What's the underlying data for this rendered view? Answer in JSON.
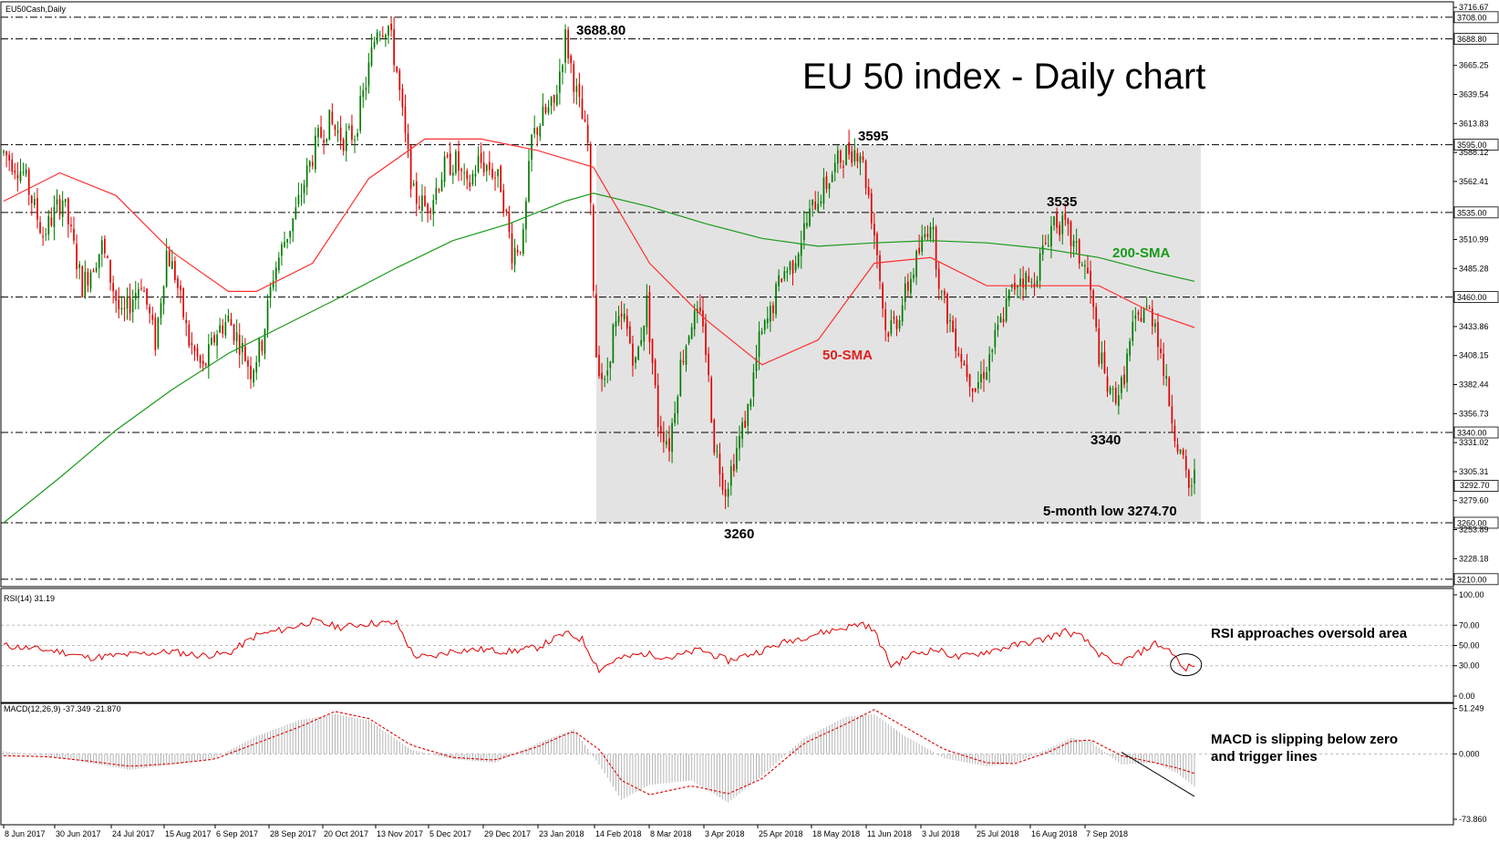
{
  "chart_data": {
    "type": "candlestick",
    "symbol_label": "EU50Cash,Daily",
    "title": "EU 50 index - Daily chart",
    "price_ticks": [
      "3716.67",
      "3665.25",
      "3639.54",
      "3613.83",
      "3588.12",
      "3562.41",
      "3510.99",
      "3485.28",
      "3433.86",
      "3408.15",
      "3382.44",
      "3356.73",
      "3331.02",
      "3305.31",
      "3279.60",
      "3253.89",
      "3228.18"
    ],
    "levels": [
      {
        "value": 3708.0,
        "label": "3708.00"
      },
      {
        "value": 3688.8,
        "label": "3688.80"
      },
      {
        "value": 3595.0,
        "label": "3595.00"
      },
      {
        "value": 3535.0,
        "label": "3535.00"
      },
      {
        "value": 3460.0,
        "label": "3460.00"
      },
      {
        "value": 3340.0,
        "label": "3340.00"
      },
      {
        "value": 3260.0,
        "label": "3260.00"
      },
      {
        "value": 3210.0,
        "label": "3210.00"
      }
    ],
    "current_price_label": "3292.70",
    "price_range": [
      3205,
      3720
    ],
    "annotations": [
      {
        "text": "3688.80",
        "value": 3688.8
      },
      {
        "text": "3595",
        "value": 3595
      },
      {
        "text": "3535",
        "value": 3535
      },
      {
        "text": "3340",
        "value": 3340
      },
      {
        "text": "3260",
        "value": 3260
      },
      {
        "text": "5-month low 3274.70",
        "value": 3274.7
      }
    ],
    "sma_labels": {
      "sma200": "200-SMA",
      "sma50": "50-SMA"
    },
    "price_anchors": [
      [
        0,
        3588
      ],
      [
        7,
        3570
      ],
      [
        14,
        3515
      ],
      [
        21,
        3548
      ],
      [
        28,
        3470
      ],
      [
        35,
        3505
      ],
      [
        42,
        3440
      ],
      [
        49,
        3475
      ],
      [
        54,
        3420
      ],
      [
        58,
        3500
      ],
      [
        61,
        3480
      ],
      [
        66,
        3420
      ],
      [
        71,
        3395
      ],
      [
        76,
        3430
      ],
      [
        80,
        3440
      ],
      [
        84,
        3420
      ],
      [
        88,
        3395
      ],
      [
        92,
        3420
      ],
      [
        96,
        3480
      ],
      [
        100,
        3510
      ],
      [
        104,
        3535
      ],
      [
        108,
        3570
      ],
      [
        112,
        3600
      ],
      [
        116,
        3615
      ],
      [
        121,
        3600
      ],
      [
        125,
        3605
      ],
      [
        129,
        3650
      ],
      [
        133,
        3700
      ],
      [
        137,
        3700
      ],
      [
        140,
        3660
      ],
      [
        143,
        3600
      ],
      [
        146,
        3550
      ],
      [
        150,
        3540
      ],
      [
        153,
        3550
      ],
      [
        157,
        3575
      ],
      [
        161,
        3580
      ],
      [
        165,
        3555
      ],
      [
        169,
        3580
      ],
      [
        173,
        3575
      ],
      [
        177,
        3560
      ],
      [
        181,
        3500
      ],
      [
        185,
        3510
      ],
      [
        188,
        3600
      ],
      [
        192,
        3620
      ],
      [
        196,
        3630
      ],
      [
        200,
        3690
      ],
      [
        204,
        3640
      ],
      [
        208,
        3595
      ],
      [
        211,
        3410
      ],
      [
        214,
        3380
      ],
      [
        217,
        3430
      ],
      [
        221,
        3440
      ],
      [
        225,
        3400
      ],
      [
        229,
        3455
      ],
      [
        233,
        3350
      ],
      [
        237,
        3330
      ],
      [
        241,
        3400
      ],
      [
        245,
        3440
      ],
      [
        249,
        3440
      ],
      [
        253,
        3330
      ],
      [
        257,
        3290
      ],
      [
        261,
        3325
      ],
      [
        265,
        3360
      ],
      [
        269,
        3420
      ],
      [
        273,
        3445
      ],
      [
        277,
        3480
      ],
      [
        281,
        3490
      ],
      [
        285,
        3520
      ],
      [
        289,
        3545
      ],
      [
        293,
        3560
      ],
      [
        297,
        3580
      ],
      [
        301,
        3590
      ],
      [
        305,
        3590
      ],
      [
        308,
        3550
      ],
      [
        311,
        3500
      ],
      [
        314,
        3430
      ],
      [
        318,
        3440
      ],
      [
        322,
        3470
      ],
      [
        326,
        3500
      ],
      [
        330,
        3530
      ],
      [
        334,
        3460
      ],
      [
        338,
        3430
      ],
      [
        342,
        3400
      ],
      [
        346,
        3380
      ],
      [
        350,
        3400
      ],
      [
        354,
        3430
      ],
      [
        358,
        3460
      ],
      [
        362,
        3480
      ],
      [
        366,
        3470
      ],
      [
        370,
        3500
      ],
      [
        374,
        3530
      ],
      [
        378,
        3520
      ],
      [
        382,
        3500
      ],
      [
        386,
        3480
      ],
      [
        390,
        3410
      ],
      [
        394,
        3370
      ],
      [
        398,
        3380
      ],
      [
        402,
        3430
      ],
      [
        406,
        3450
      ],
      [
        410,
        3440
      ],
      [
        414,
        3380
      ],
      [
        418,
        3330
      ],
      [
        422,
        3290
      ],
      [
        424,
        3300
      ]
    ],
    "sma200_points": [
      [
        0,
        3260
      ],
      [
        20,
        3300
      ],
      [
        40,
        3342
      ],
      [
        60,
        3378
      ],
      [
        80,
        3410
      ],
      [
        100,
        3435
      ],
      [
        120,
        3460
      ],
      [
        140,
        3486
      ],
      [
        160,
        3510
      ],
      [
        180,
        3525
      ],
      [
        200,
        3545
      ],
      [
        210,
        3552
      ],
      [
        230,
        3540
      ],
      [
        250,
        3525
      ],
      [
        270,
        3512
      ],
      [
        290,
        3505
      ],
      [
        310,
        3508
      ],
      [
        330,
        3510
      ],
      [
        350,
        3508
      ],
      [
        370,
        3503
      ],
      [
        390,
        3495
      ],
      [
        410,
        3482
      ],
      [
        424,
        3474
      ]
    ],
    "sma50_points": [
      [
        0,
        3545
      ],
      [
        20,
        3570
      ],
      [
        40,
        3550
      ],
      [
        60,
        3500
      ],
      [
        80,
        3465
      ],
      [
        90,
        3465
      ],
      [
        110,
        3490
      ],
      [
        130,
        3565
      ],
      [
        150,
        3600
      ],
      [
        170,
        3600
      ],
      [
        190,
        3590
      ],
      [
        210,
        3575
      ],
      [
        230,
        3490
      ],
      [
        250,
        3440
      ],
      [
        270,
        3400
      ],
      [
        290,
        3422
      ],
      [
        310,
        3490
      ],
      [
        330,
        3495
      ],
      [
        350,
        3470
      ],
      [
        370,
        3470
      ],
      [
        390,
        3470
      ],
      [
        410,
        3445
      ],
      [
        424,
        3433
      ]
    ],
    "rsi": {
      "label": "RSI(14) 31.19",
      "ticks": [
        "100.00",
        "70.00",
        "50.00",
        "30.00",
        "0.00"
      ],
      "levels": [
        70,
        50,
        30
      ],
      "annotation": "RSI approaches oversold area",
      "points": [
        [
          0,
          50
        ],
        [
          10,
          47
        ],
        [
          20,
          44
        ],
        [
          30,
          38
        ],
        [
          40,
          40
        ],
        [
          50,
          42
        ],
        [
          60,
          44
        ],
        [
          70,
          40
        ],
        [
          80,
          42
        ],
        [
          90,
          60
        ],
        [
          100,
          66
        ],
        [
          110,
          74
        ],
        [
          120,
          68
        ],
        [
          130,
          72
        ],
        [
          140,
          72
        ],
        [
          146,
          40
        ],
        [
          152,
          38
        ],
        [
          160,
          45
        ],
        [
          170,
          46
        ],
        [
          180,
          44
        ],
        [
          190,
          48
        ],
        [
          200,
          62
        ],
        [
          206,
          56
        ],
        [
          212,
          26
        ],
        [
          218,
          36
        ],
        [
          228,
          42
        ],
        [
          238,
          38
        ],
        [
          248,
          46
        ],
        [
          258,
          35
        ],
        [
          270,
          45
        ],
        [
          280,
          55
        ],
        [
          290,
          62
        ],
        [
          300,
          68
        ],
        [
          306,
          72
        ],
        [
          310,
          64
        ],
        [
          316,
          30
        ],
        [
          324,
          42
        ],
        [
          332,
          46
        ],
        [
          340,
          38
        ],
        [
          350,
          44
        ],
        [
          360,
          50
        ],
        [
          370,
          56
        ],
        [
          378,
          64
        ],
        [
          384,
          58
        ],
        [
          390,
          42
        ],
        [
          396,
          30
        ],
        [
          404,
          42
        ],
        [
          410,
          52
        ],
        [
          416,
          44
        ],
        [
          420,
          26
        ],
        [
          424,
          31
        ]
      ]
    },
    "macd": {
      "label": "MACD(12,26,9) -37.349 -21.870",
      "ticks": [
        "51.249",
        "0.000",
        "-73.860"
      ],
      "range": [
        -78,
        55
      ],
      "annotation_lines": [
        "MACD is slipping below zero",
        "and trigger lines"
      ],
      "points": [
        [
          0,
          3
        ],
        [
          15,
          -2
        ],
        [
          30,
          -10
        ],
        [
          45,
          -18
        ],
        [
          60,
          -12
        ],
        [
          75,
          -5
        ],
        [
          90,
          20
        ],
        [
          105,
          38
        ],
        [
          118,
          45
        ],
        [
          130,
          38
        ],
        [
          145,
          5
        ],
        [
          160,
          -6
        ],
        [
          175,
          -10
        ],
        [
          190,
          12
        ],
        [
          203,
          28
        ],
        [
          212,
          -12
        ],
        [
          220,
          -52
        ],
        [
          230,
          -35
        ],
        [
          245,
          -30
        ],
        [
          258,
          -55
        ],
        [
          270,
          -25
        ],
        [
          285,
          18
        ],
        [
          300,
          42
        ],
        [
          310,
          45
        ],
        [
          320,
          22
        ],
        [
          335,
          -5
        ],
        [
          350,
          -14
        ],
        [
          360,
          -10
        ],
        [
          372,
          6
        ],
        [
          380,
          18
        ],
        [
          387,
          14
        ],
        [
          398,
          -12
        ],
        [
          410,
          -10
        ],
        [
          418,
          -22
        ],
        [
          424,
          -37
        ]
      ],
      "signal_points": [
        [
          0,
          -2
        ],
        [
          15,
          -3
        ],
        [
          30,
          -8
        ],
        [
          45,
          -14
        ],
        [
          60,
          -11
        ],
        [
          75,
          -6
        ],
        [
          90,
          12
        ],
        [
          105,
          30
        ],
        [
          118,
          48
        ],
        [
          130,
          40
        ],
        [
          145,
          10
        ],
        [
          160,
          -4
        ],
        [
          175,
          -7
        ],
        [
          190,
          8
        ],
        [
          203,
          26
        ],
        [
          212,
          5
        ],
        [
          220,
          -30
        ],
        [
          230,
          -46
        ],
        [
          245,
          -36
        ],
        [
          258,
          -45
        ],
        [
          270,
          -28
        ],
        [
          285,
          12
        ],
        [
          300,
          34
        ],
        [
          310,
          50
        ],
        [
          320,
          32
        ],
        [
          335,
          5
        ],
        [
          350,
          -10
        ],
        [
          360,
          -11
        ],
        [
          372,
          2
        ],
        [
          380,
          14
        ],
        [
          387,
          16
        ],
        [
          398,
          -2
        ],
        [
          410,
          -10
        ],
        [
          418,
          -16
        ],
        [
          424,
          -22
        ]
      ]
    },
    "dates": [
      "8 Jun 2017",
      "30 Jun 2017",
      "24 Jul 2017",
      "15 Aug 2017",
      "6 Sep 2017",
      "28 Sep 2017",
      "20 Oct 2017",
      "13 Nov 2017",
      "5 Dec 2017",
      "29 Dec 2017",
      "23 Jan 2018",
      "14 Feb 2018",
      "8 Mar 2018",
      "3 Apr 2018",
      "25 Apr 2018",
      "18 May 2018",
      "11 Jun 2018",
      "3 Jul 2018",
      "25 Jul 2018",
      "16 Aug 2018",
      "7 Sep 2018"
    ],
    "colors": {
      "up": "#007a00",
      "down": "#e00000",
      "sma50": "#ff3030",
      "sma200": "#1a9a1a",
      "rsi": "#e00000",
      "shade": "#e3e3e3",
      "grid": "#000000",
      "macd_hist": "#b5b5b5"
    }
  }
}
